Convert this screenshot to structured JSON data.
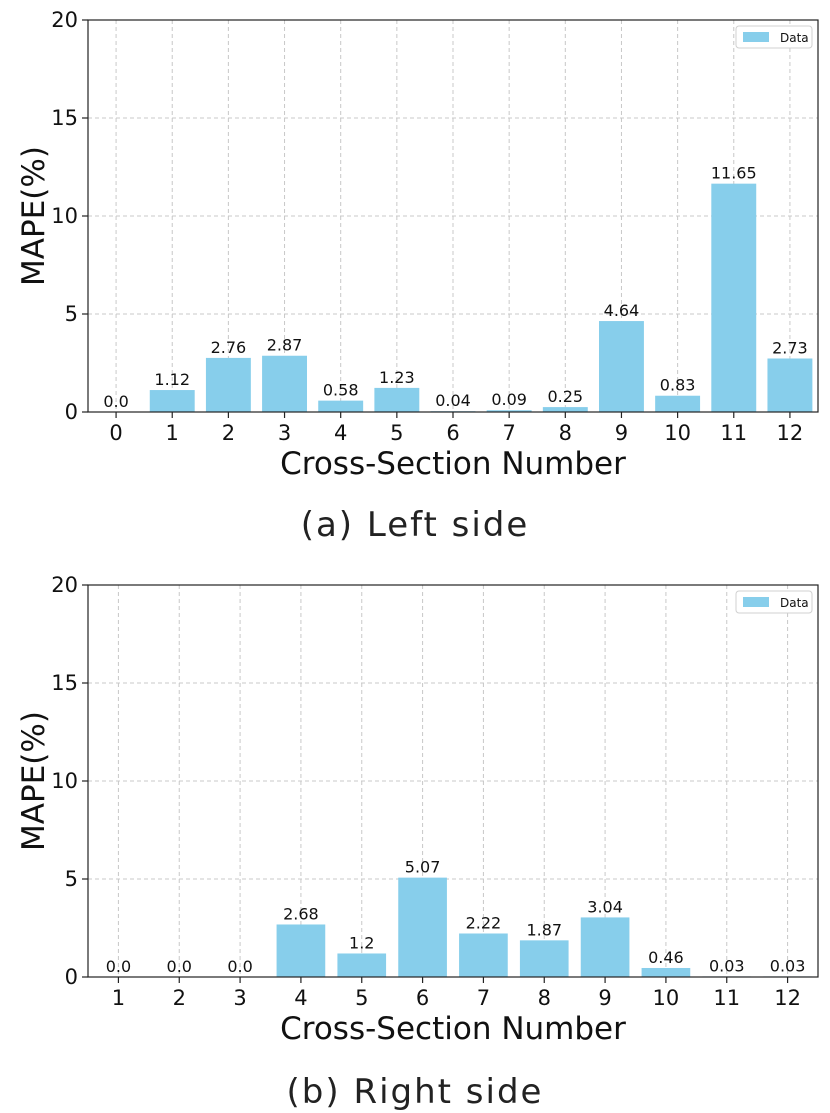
{
  "chart_data": [
    {
      "type": "bar",
      "xlabel": "Cross-Section Number",
      "ylabel": "MAPE(%)",
      "ylim": [
        0,
        20
      ],
      "yticks": [
        "0",
        "5",
        "10",
        "15",
        "20"
      ],
      "categories": [
        "0",
        "1",
        "2",
        "3",
        "4",
        "5",
        "6",
        "7",
        "8",
        "9",
        "10",
        "11",
        "12"
      ],
      "values": [
        0.0,
        1.12,
        2.76,
        2.87,
        0.58,
        1.23,
        0.04,
        0.09,
        0.25,
        4.64,
        0.83,
        11.65,
        2.73
      ],
      "value_labels": [
        "0.0",
        "1.12",
        "2.76",
        "2.87",
        "0.58",
        "1.23",
        "0.04",
        "0.09",
        "0.25",
        "4.64",
        "0.83",
        "11.65",
        "2.73"
      ],
      "legend": "Data",
      "legend_position": "top-right",
      "grid": true,
      "caption": "(a) Left side",
      "bar_color": "#87CEEB"
    },
    {
      "type": "bar",
      "xlabel": "Cross-Section Number",
      "ylabel": "MAPE(%)",
      "ylim": [
        0,
        20
      ],
      "yticks": [
        "0",
        "5",
        "10",
        "15",
        "20"
      ],
      "categories": [
        "1",
        "2",
        "3",
        "4",
        "5",
        "6",
        "7",
        "8",
        "9",
        "10",
        "11",
        "12"
      ],
      "values": [
        0.0,
        0.0,
        0.0,
        2.68,
        1.2,
        5.07,
        2.22,
        1.87,
        3.04,
        0.46,
        0.03,
        0.03
      ],
      "value_labels": [
        "0.0",
        "0.0",
        "0.0",
        "2.68",
        "1.2",
        "5.07",
        "2.22",
        "1.87",
        "3.04",
        "0.46",
        "0.03",
        "0.03"
      ],
      "legend": "Data",
      "legend_position": "top-right",
      "grid": true,
      "caption": "(b) Right side",
      "bar_color": "#87CEEB"
    }
  ]
}
